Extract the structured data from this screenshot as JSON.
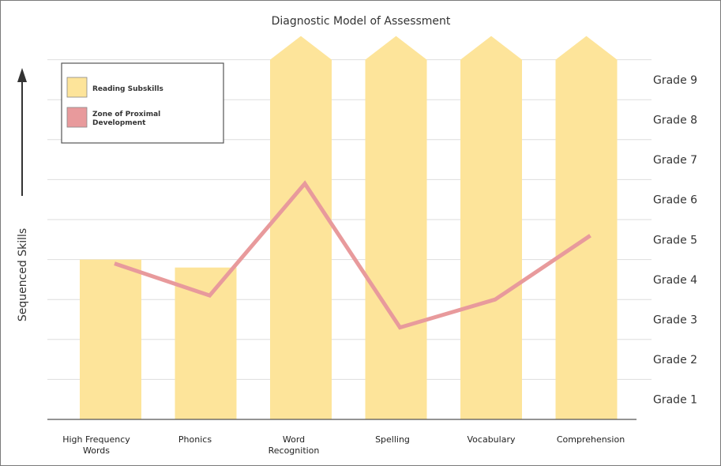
{
  "chart_data": {
    "type": "bar",
    "title": "Diagnostic Model of Assessment",
    "ylabel": "Sequenced Skills",
    "xlabel": "",
    "grade_labels": [
      "Grade 1",
      "Grade 2",
      "Grade 3",
      "Grade 4",
      "Grade 5",
      "Grade 6",
      "Grade 7",
      "Grade 8",
      "Grade 9"
    ],
    "categories": [
      [
        "High Frequency",
        "Words"
      ],
      [
        "Phonics"
      ],
      [
        "Word",
        "Recognition"
      ],
      [
        "Spelling"
      ],
      [
        "Vocabulary"
      ],
      [
        "Comprehension"
      ]
    ],
    "ylim": [
      0,
      9
    ],
    "grid": true,
    "legend_position": "top-left",
    "series": [
      {
        "name": "Reading Subskills",
        "kind": "bar",
        "color": "#fde49a",
        "values": [
          4.0,
          3.8,
          9.0,
          9.0,
          9.0,
          9.0
        ],
        "extends_beyond_top": [
          false,
          false,
          true,
          true,
          true,
          true
        ]
      },
      {
        "name": "Zone of Proximal Development",
        "kind": "line",
        "color": "#e89a9c",
        "values": [
          3.9,
          3.1,
          5.9,
          2.3,
          3.0,
          4.6
        ]
      }
    ]
  }
}
